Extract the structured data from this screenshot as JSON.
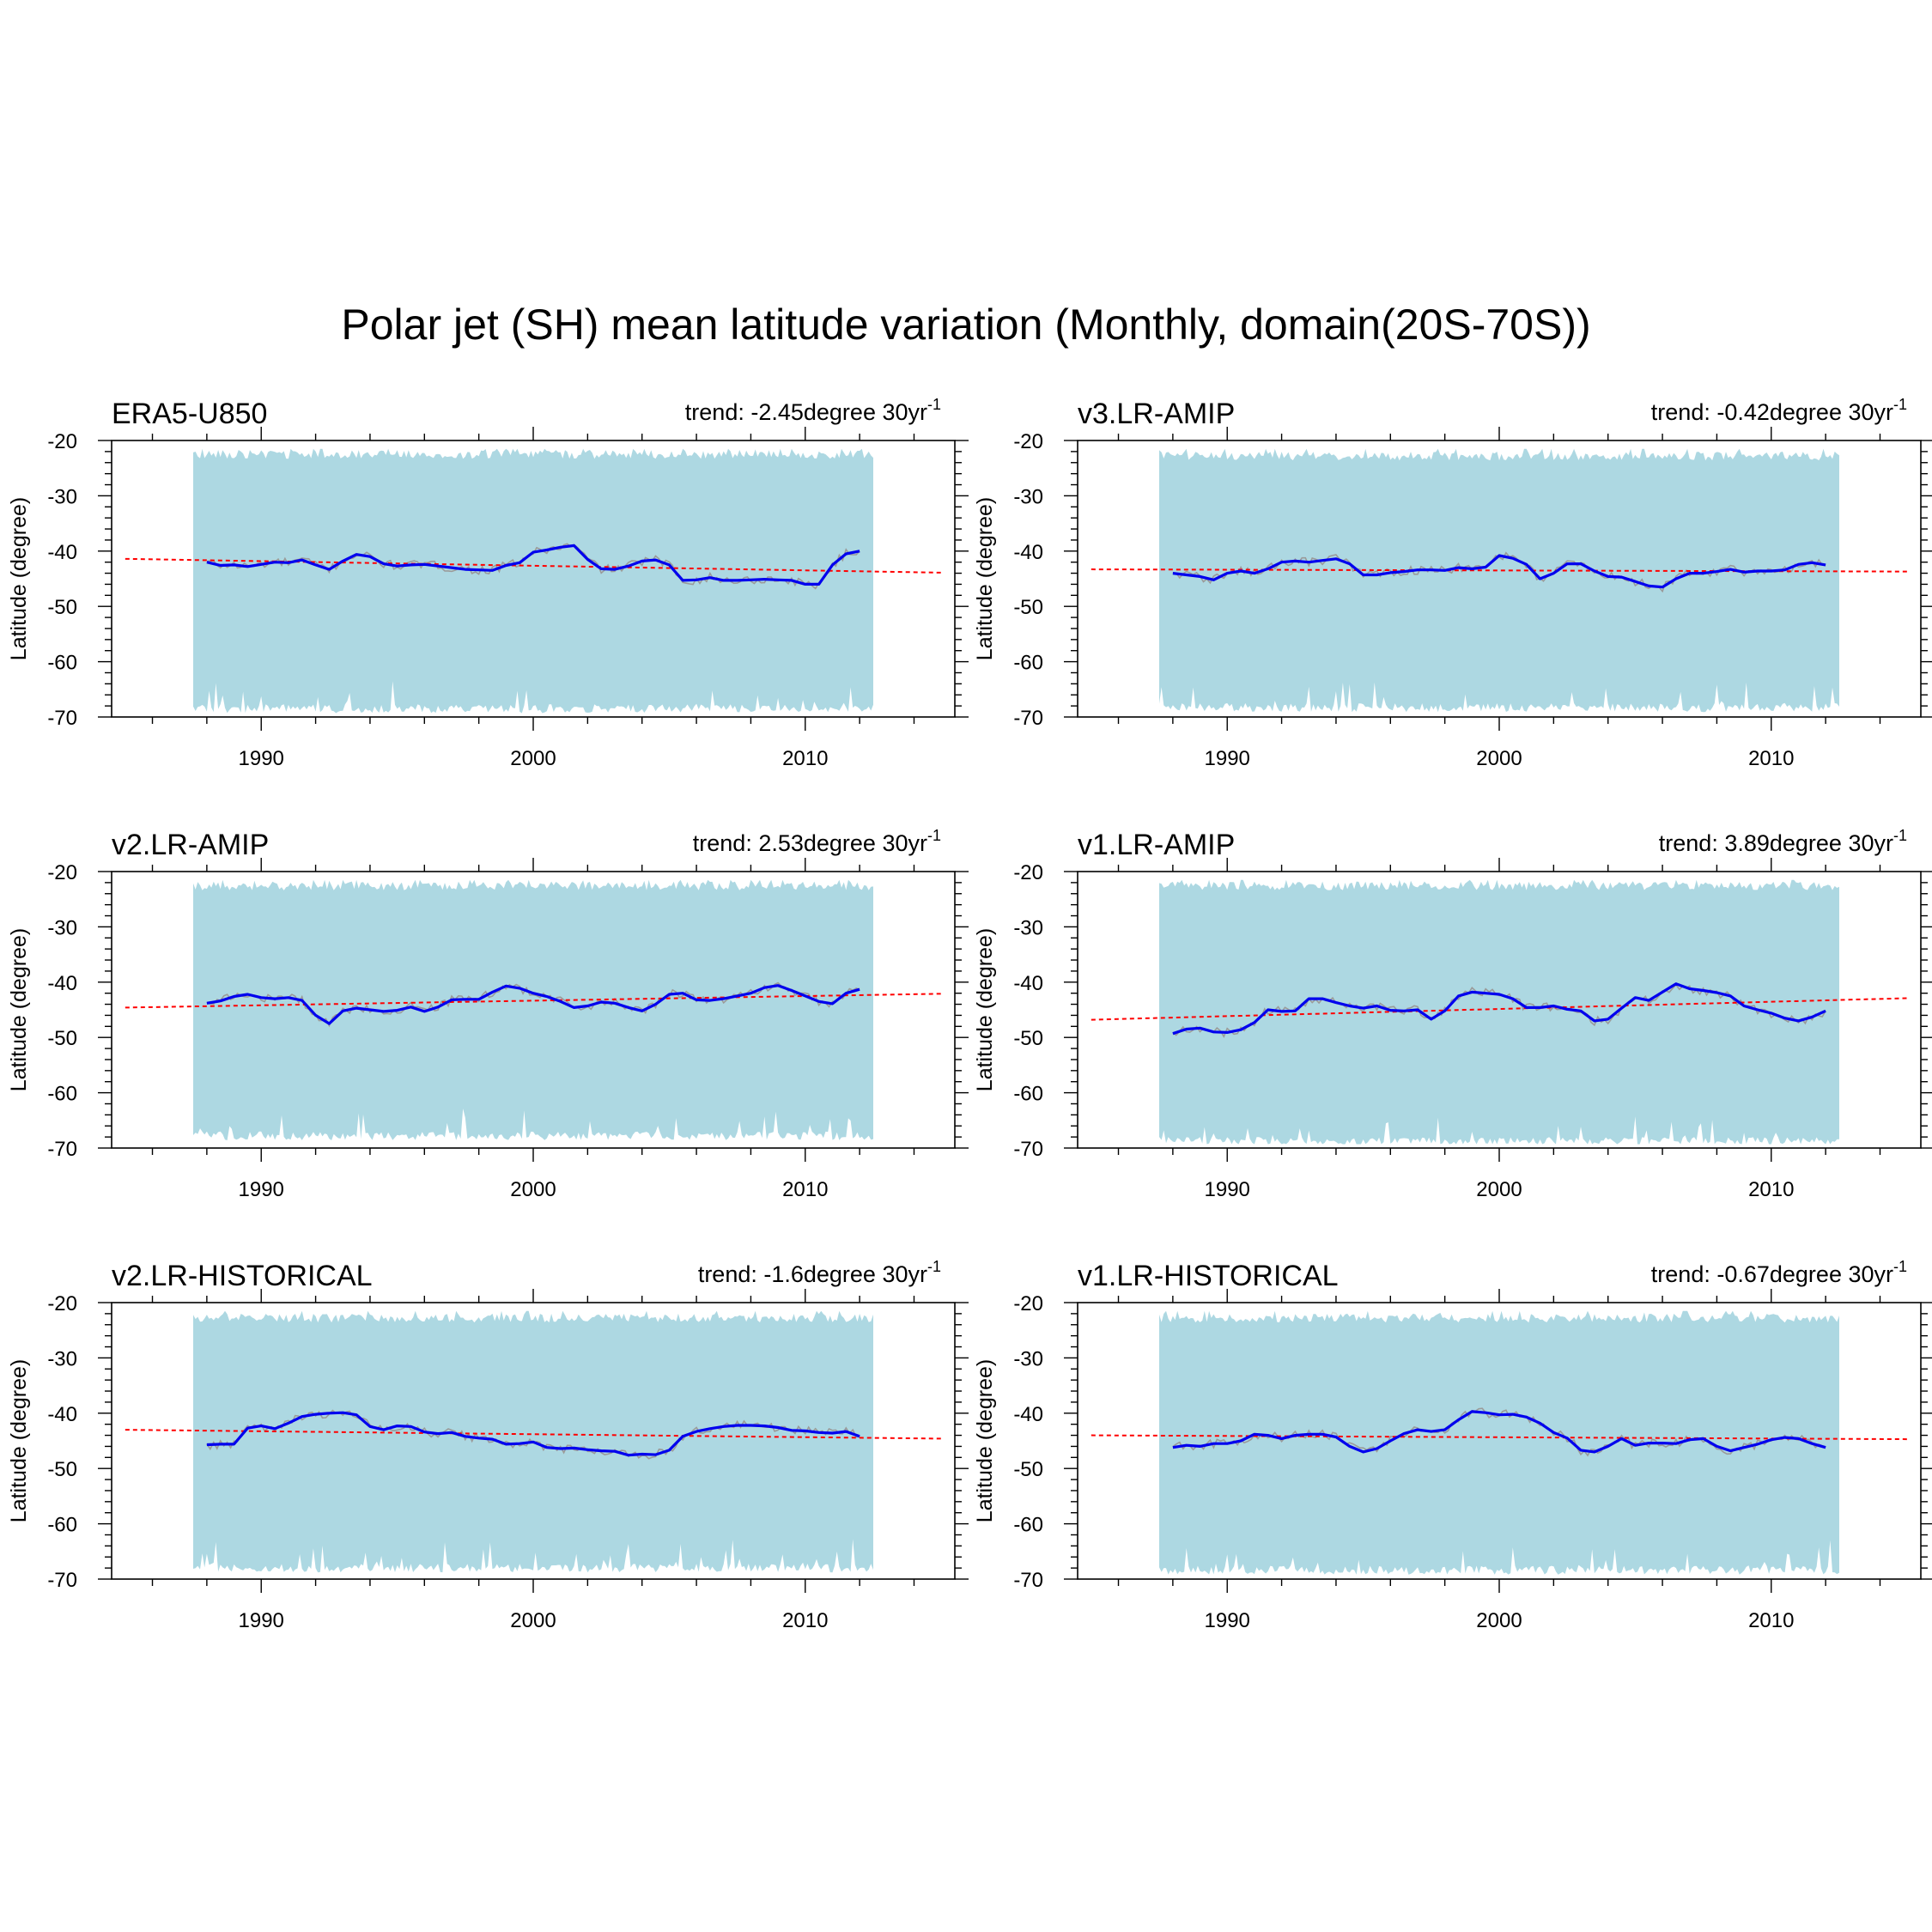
{
  "figure": {
    "title": "Polar jet (SH) mean latitude variation (Monthly, domain(20S-70S))"
  },
  "colors": {
    "band": "#add8e2",
    "mean_line": "#0000ee",
    "raw_line": "#9a9a9a",
    "trend_line": "#ff0000",
    "axis": "#000000"
  },
  "chart_data": [
    {
      "type": "area",
      "name": "ERA5-U850",
      "trend_text": "trend: -2.45degree 30yr",
      "trend_superscript": "-1",
      "ylabel": "Latitude (degree)",
      "xlim": [
        1984.5,
        2015.5
      ],
      "ylim": [
        -70,
        -20
      ],
      "xticks": [
        1990,
        2000,
        2010
      ],
      "yticks": [
        -20,
        -30,
        -40,
        -50,
        -60,
        -70
      ],
      "band_x": [
        1987.5,
        2012.5
      ],
      "band_upper_mean": -22.5,
      "band_lower_mean": -68.5,
      "trend_line": {
        "x": [
          1985,
          2015
        ],
        "y": [
          -41.4,
          -43.9
        ]
      },
      "mean_line": {
        "x": [
          1988,
          1988.5,
          1989,
          1989.5,
          1990,
          1990.5,
          1991,
          1991.5,
          1992,
          1992.5,
          1993,
          1993.5,
          1994,
          1994.5,
          1995,
          1995.5,
          1996,
          1996.5,
          1997,
          1997.5,
          1998,
          1998.5,
          1999,
          1999.5,
          2000,
          2000.5,
          2001,
          2001.5,
          2002,
          2002.5,
          2003,
          2003.5,
          2004,
          2004.5,
          2005,
          2005.5,
          2006,
          2006.5,
          2007,
          2007.5,
          2008,
          2008.5,
          2009,
          2009.5,
          2010,
          2010.5,
          2011,
          2011.5,
          2012
        ],
        "y": [
          -42.0,
          -42.6,
          -42.5,
          -42.8,
          -42.4,
          -42.0,
          -42.1,
          -41.6,
          -42.5,
          -43.3,
          -41.8,
          -40.6,
          -41.0,
          -42.3,
          -42.7,
          -42.5,
          -42.4,
          -42.7,
          -43.0,
          -43.3,
          -43.4,
          -43.5,
          -42.6,
          -42.1,
          -40.2,
          -39.8,
          -39.3,
          -39.0,
          -41.5,
          -43.2,
          -43.3,
          -42.7,
          -41.8,
          -41.6,
          -42.5,
          -45.3,
          -45.2,
          -44.8,
          -45.3,
          -45.3,
          -45.2,
          -45.1,
          -45.2,
          -45.3,
          -46.0,
          -46.0,
          -42.5,
          -40.5,
          -40.0
        ]
      }
    },
    {
      "type": "area",
      "name": "v3.LR-AMIP",
      "trend_text": "trend: -0.42degree 30yr",
      "trend_superscript": "-1",
      "ylabel": "Latitude (degree)",
      "xlim": [
        1984.5,
        2015.5
      ],
      "ylim": [
        -70,
        -20
      ],
      "xticks": [
        1990,
        2000,
        2010
      ],
      "yticks": [
        -20,
        -30,
        -40,
        -50,
        -60,
        -70
      ],
      "band_x": [
        1987.5,
        2012.5
      ],
      "band_upper_mean": -22.8,
      "band_lower_mean": -68.3,
      "trend_line": {
        "x": [
          1985,
          2015
        ],
        "y": [
          -43.3,
          -43.7
        ]
      },
      "mean_line": {
        "x": [
          1988,
          1988.5,
          1989,
          1989.5,
          1990,
          1990.5,
          1991,
          1991.5,
          1992,
          1992.5,
          1993,
          1993.5,
          1994,
          1994.5,
          1995,
          1995.5,
          1996,
          1996.5,
          1997,
          1997.5,
          1998,
          1998.5,
          1999,
          1999.5,
          2000,
          2000.5,
          2001,
          2001.5,
          2002,
          2002.5,
          2003,
          2003.5,
          2004,
          2004.5,
          2005,
          2005.5,
          2006,
          2006.5,
          2007,
          2007.5,
          2008,
          2008.5,
          2009,
          2009.5,
          2010,
          2010.5,
          2011,
          2011.5,
          2012
        ],
        "y": [
          -44.0,
          -44.3,
          -44.6,
          -45.2,
          -44.0,
          -43.6,
          -44.0,
          -43.2,
          -42.0,
          -41.8,
          -42.0,
          -41.7,
          -41.4,
          -42.3,
          -44.3,
          -44.3,
          -43.9,
          -43.7,
          -43.4,
          -43.4,
          -43.5,
          -43.0,
          -43.2,
          -42.9,
          -40.8,
          -41.3,
          -42.4,
          -45.0,
          -44.0,
          -42.3,
          -42.3,
          -43.6,
          -44.6,
          -44.7,
          -45.5,
          -46.3,
          -46.5,
          -45.0,
          -44.0,
          -44.0,
          -43.7,
          -43.3,
          -43.8,
          -43.6,
          -43.6,
          -43.4,
          -42.4,
          -42.1,
          -42.5
        ]
      }
    },
    {
      "type": "area",
      "name": "v2.LR-AMIP",
      "trend_text": "trend: 2.53degree 30yr",
      "trend_superscript": "-1",
      "ylabel": "Latitude (degree)",
      "xlim": [
        1984.5,
        2015.5
      ],
      "ylim": [
        -70,
        -20
      ],
      "xticks": [
        1990,
        2000,
        2010
      ],
      "yticks": [
        -20,
        -30,
        -40,
        -50,
        -60,
        -70
      ],
      "band_x": [
        1987.5,
        2012.5
      ],
      "band_upper_mean": -22.6,
      "band_lower_mean": -67.8,
      "trend_line": {
        "x": [
          1985,
          2015
        ],
        "y": [
          -44.6,
          -42.1
        ]
      },
      "mean_line": {
        "x": [
          1988,
          1988.5,
          1989,
          1989.5,
          1990,
          1990.5,
          1991,
          1991.5,
          1992,
          1992.5,
          1993,
          1993.5,
          1994,
          1994.5,
          1995,
          1995.5,
          1996,
          1996.5,
          1997,
          1997.5,
          1998,
          1998.5,
          1999,
          1999.5,
          2000,
          2000.5,
          2001,
          2001.5,
          2002,
          2002.5,
          2003,
          2003.5,
          2004,
          2004.5,
          2005,
          2005.5,
          2006,
          2006.5,
          2007,
          2007.5,
          2008,
          2008.5,
          2009,
          2009.5,
          2010,
          2010.5,
          2011,
          2011.5,
          2012
        ],
        "y": [
          -43.8,
          -43.4,
          -42.6,
          -42.2,
          -42.8,
          -43.0,
          -42.8,
          -43.3,
          -46.0,
          -47.5,
          -45.2,
          -44.7,
          -45.0,
          -45.3,
          -45.1,
          -44.5,
          -45.3,
          -44.5,
          -43.2,
          -43.1,
          -43.1,
          -41.8,
          -40.7,
          -41.1,
          -42.0,
          -42.6,
          -43.5,
          -44.6,
          -44.3,
          -43.6,
          -43.8,
          -44.6,
          -45.2,
          -44.0,
          -42.2,
          -42.0,
          -43.2,
          -43.3,
          -43.0,
          -42.5,
          -42.0,
          -41.0,
          -40.6,
          -41.5,
          -42.5,
          -43.5,
          -43.9,
          -42.0,
          -41.3
        ]
      }
    },
    {
      "type": "area",
      "name": "v1.LR-AMIP",
      "trend_text": "trend: 3.89degree 30yr",
      "trend_superscript": "-1",
      "ylabel": "Latitude (degree)",
      "xlim": [
        1984.5,
        2015.5
      ],
      "ylim": [
        -70,
        -20
      ],
      "xticks": [
        1990,
        2000,
        2010
      ],
      "yticks": [
        -20,
        -30,
        -40,
        -50,
        -60,
        -70
      ],
      "band_x": [
        1987.5,
        2012.5
      ],
      "band_upper_mean": -22.6,
      "band_lower_mean": -68.8,
      "trend_line": {
        "x": [
          1985,
          2015
        ],
        "y": [
          -46.8,
          -42.9
        ]
      },
      "mean_line": {
        "x": [
          1988,
          1988.5,
          1989,
          1989.5,
          1990,
          1990.5,
          1991,
          1991.5,
          1992,
          1992.5,
          1993,
          1993.5,
          1994,
          1994.5,
          1995,
          1995.5,
          1996,
          1996.5,
          1997,
          1997.5,
          1998,
          1998.5,
          1999,
          1999.5,
          2000,
          2000.5,
          2001,
          2001.5,
          2002,
          2002.5,
          2003,
          2003.5,
          2004,
          2004.5,
          2005,
          2005.5,
          2006,
          2006.5,
          2007,
          2007.5,
          2008,
          2008.5,
          2009,
          2009.5,
          2010,
          2010.5,
          2011,
          2011.5,
          2012
        ],
        "y": [
          -49.3,
          -48.5,
          -48.3,
          -49.0,
          -49.1,
          -48.6,
          -47.3,
          -45.0,
          -45.3,
          -45.2,
          -43.0,
          -43.0,
          -43.7,
          -44.3,
          -44.7,
          -44.3,
          -45.1,
          -45.2,
          -45.0,
          -46.7,
          -45.2,
          -42.5,
          -41.8,
          -42.0,
          -42.2,
          -43.0,
          -44.6,
          -44.6,
          -44.3,
          -44.9,
          -45.2,
          -47.0,
          -46.7,
          -44.7,
          -42.8,
          -43.3,
          -41.8,
          -40.3,
          -41.2,
          -41.5,
          -41.9,
          -42.5,
          -44.3,
          -45.0,
          -45.6,
          -46.5,
          -47.0,
          -46.3,
          -45.2
        ]
      }
    },
    {
      "type": "area",
      "name": "v2.LR-HISTORICAL",
      "trend_text": "trend: -1.6degree 30yr",
      "trend_superscript": "-1",
      "ylabel": "Latitude (degree)",
      "xlim": [
        1984.5,
        2015.5
      ],
      "ylim": [
        -70,
        -20
      ],
      "xticks": [
        1990,
        2000,
        2010
      ],
      "yticks": [
        -20,
        -30,
        -40,
        -50,
        -60,
        -70
      ],
      "band_x": [
        1987.5,
        2012.5
      ],
      "band_upper_mean": -22.8,
      "band_lower_mean": -68.0,
      "trend_line": {
        "x": [
          1985,
          2015
        ],
        "y": [
          -43.0,
          -44.6
        ]
      },
      "mean_line": {
        "x": [
          1988,
          1988.5,
          1989,
          1989.5,
          1990,
          1990.5,
          1991,
          1991.5,
          1992,
          1992.5,
          1993,
          1993.5,
          1994,
          1994.5,
          1995,
          1995.5,
          1996,
          1996.5,
          1997,
          1997.5,
          1998,
          1998.5,
          1999,
          1999.5,
          2000,
          2000.5,
          2001,
          2001.5,
          2002,
          2002.5,
          2003,
          2003.5,
          2004,
          2004.5,
          2005,
          2005.5,
          2006,
          2006.5,
          2007,
          2007.5,
          2008,
          2008.5,
          2009,
          2009.5,
          2010,
          2010.5,
          2011,
          2011.5,
          2012
        ],
        "y": [
          -45.7,
          -45.6,
          -45.6,
          -42.7,
          -42.3,
          -42.8,
          -41.8,
          -40.6,
          -40.2,
          -40.0,
          -39.9,
          -40.3,
          -42.4,
          -43.0,
          -42.3,
          -42.4,
          -43.4,
          -43.7,
          -43.5,
          -44.2,
          -44.5,
          -44.7,
          -45.6,
          -45.5,
          -45.2,
          -46.2,
          -46.4,
          -46.3,
          -46.6,
          -46.8,
          -46.9,
          -47.6,
          -47.4,
          -47.5,
          -46.7,
          -44.2,
          -43.3,
          -42.8,
          -42.4,
          -42.2,
          -42.2,
          -42.3,
          -42.6,
          -43.1,
          -43.2,
          -43.5,
          -43.6,
          -43.3,
          -44.2
        ]
      }
    },
    {
      "type": "area",
      "name": "v1.LR-HISTORICAL",
      "trend_text": "trend: -0.67degree 30yr",
      "trend_superscript": "-1",
      "ylabel": "Latitude (degree)",
      "xlim": [
        1984.5,
        2015.5
      ],
      "ylim": [
        -70,
        -20
      ],
      "xticks": [
        1990,
        2000,
        2010
      ],
      "yticks": [
        -20,
        -30,
        -40,
        -50,
        -60,
        -70
      ],
      "band_x": [
        1987.5,
        2012.5
      ],
      "band_upper_mean": -22.8,
      "band_lower_mean": -68.4,
      "trend_line": {
        "x": [
          1985,
          2015
        ],
        "y": [
          -44.0,
          -44.7
        ]
      },
      "mean_line": {
        "x": [
          1988,
          1988.5,
          1989,
          1989.5,
          1990,
          1990.5,
          1991,
          1991.5,
          1992,
          1992.5,
          1993,
          1993.5,
          1994,
          1994.5,
          1995,
          1995.5,
          1996,
          1996.5,
          1997,
          1997.5,
          1998,
          1998.5,
          1999,
          1999.5,
          2000,
          2000.5,
          2001,
          2001.5,
          2002,
          2002.5,
          2003,
          2003.5,
          2004,
          2004.5,
          2005,
          2005.5,
          2006,
          2006.5,
          2007,
          2007.5,
          2008,
          2008.5,
          2009,
          2009.5,
          2010,
          2010.5,
          2011,
          2011.5,
          2012
        ],
        "y": [
          -46.2,
          -45.8,
          -46.0,
          -45.5,
          -45.5,
          -45.0,
          -43.8,
          -44.0,
          -44.6,
          -44.0,
          -43.8,
          -43.8,
          -44.3,
          -46.0,
          -47.0,
          -46.4,
          -45.0,
          -43.7,
          -43.0,
          -43.3,
          -43.0,
          -41.2,
          -39.7,
          -39.9,
          -40.3,
          -40.2,
          -40.7,
          -41.8,
          -43.5,
          -44.5,
          -46.7,
          -47.0,
          -46.0,
          -44.6,
          -45.8,
          -45.4,
          -45.4,
          -45.5,
          -44.8,
          -44.6,
          -46.0,
          -46.8,
          -46.2,
          -45.6,
          -44.8,
          -44.4,
          -44.6,
          -45.5,
          -46.2
        ]
      }
    }
  ]
}
